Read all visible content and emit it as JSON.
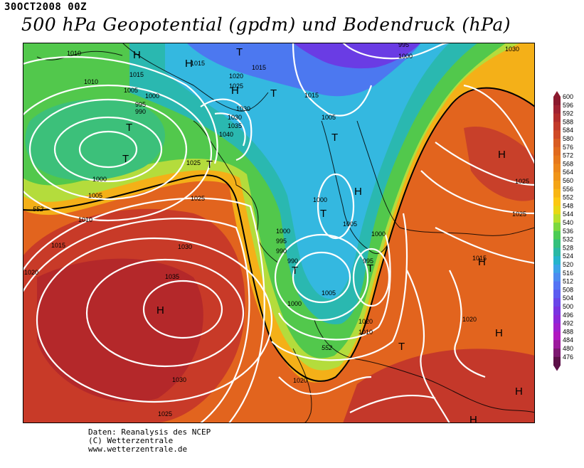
{
  "header": {
    "datetime": "30OCT2008 00Z",
    "title": "500 hPa Geopotential (gpdm) und Bodendruck (hPa)"
  },
  "map": {
    "isobar_labels": [
      "1010",
      "1015",
      "1010",
      "1005",
      "1000",
      "995",
      "990",
      "1015",
      "1020",
      "1025",
      "1015",
      "1030",
      "1035",
      "1040",
      "1025",
      "1000",
      "1005",
      "1010",
      "1015",
      "1020",
      "1025",
      "1030",
      "1035",
      "1000",
      "995",
      "990",
      "1000",
      "1005",
      "1000",
      "995",
      "990",
      "1005",
      "1010",
      "1015",
      "1020",
      "1025",
      "1000",
      "1005",
      "995",
      "1000",
      "1030",
      "1025",
      "1015",
      "1020",
      "1020",
      "1025",
      "1030",
      "1030"
    ],
    "pressure_markers": [
      "H",
      "H",
      "T",
      "T",
      "T",
      "T",
      "T",
      "T",
      "H",
      "H",
      "H",
      "T",
      "T",
      "T",
      "H",
      "H",
      "H",
      "H",
      "T",
      "H"
    ],
    "geopotential_labels": [
      "552",
      "552"
    ],
    "colors": {
      "outline": "#ffffff",
      "isobar": "#ffffff",
      "coast": "#000000"
    }
  },
  "legend": {
    "ticks": [
      "600",
      "596",
      "592",
      "588",
      "584",
      "580",
      "576",
      "572",
      "568",
      "564",
      "560",
      "556",
      "552",
      "548",
      "544",
      "540",
      "536",
      "532",
      "528",
      "524",
      "520",
      "516",
      "512",
      "508",
      "504",
      "500",
      "496",
      "492",
      "488",
      "484",
      "480",
      "476"
    ],
    "colors": [
      "#8b1a2e",
      "#a02232",
      "#b22c2c",
      "#c23a2a",
      "#cf4a26",
      "#d85c22",
      "#e06a1e",
      "#e6781c",
      "#ec861a",
      "#f09418",
      "#f4a416",
      "#f8b614",
      "#fcc812",
      "#e8d814",
      "#b8e02c",
      "#7cd840",
      "#4ccc54",
      "#34c07c",
      "#2ab8a4",
      "#26b4cc",
      "#3ca4e8",
      "#4c8cf0",
      "#5474f4",
      "#5c5cf0",
      "#6a46e8",
      "#7a34e0",
      "#8c28d8",
      "#a020cc",
      "#b018c0",
      "#9c1a9c",
      "#7c1870",
      "#5c1048"
    ]
  },
  "footer": {
    "line1": "Daten: Reanalysis des NCEP",
    "line2": "(C) Wetterzentrale",
    "line3": "www.wetterzentrale.de"
  }
}
